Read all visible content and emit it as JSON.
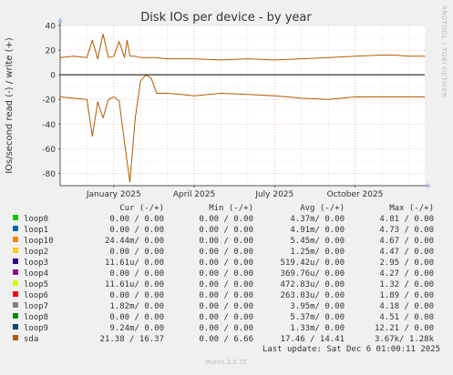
{
  "chart_data": {
    "type": "line",
    "title": "Disk IOs per device - by year",
    "ylabel": "IOs/second read (-) / write (+)",
    "watermark": "RRDTOOL / TOBI OETIKER",
    "footer": "Munin 2.0.75",
    "last_update": "Last update: Sat Dec  6 01:00:11 2025",
    "ylim": [
      -90,
      40
    ],
    "yticks": [
      40,
      20,
      0,
      -20,
      -40,
      -60,
      -80
    ],
    "xlim": [
      0,
      13.6
    ],
    "x_unit": "months since 2024-11-01",
    "xticks": [
      {
        "label": "January 2025",
        "x": 2
      },
      {
        "label": "April 2025",
        "x": 5
      },
      {
        "label": "July 2025",
        "x": 8
      },
      {
        "label": "October 2025",
        "x": 11
      }
    ],
    "legend_headers": [
      "Cur (-/+)",
      "Min (-/+)",
      "Avg (-/+)",
      "Max (-/+)"
    ],
    "legend": [
      {
        "name": "loop0",
        "color": "#00cc00",
        "cur": "0.00 /  0.00",
        "min": "0.00 /  0.00",
        "avg": "4.37m/  0.00",
        "max": "4.81 /  0.00"
      },
      {
        "name": "loop1",
        "color": "#0066b3",
        "cur": "0.00 /  0.00",
        "min": "0.00 /  0.00",
        "avg": "4.91m/  0.00",
        "max": "4.73 /  0.00"
      },
      {
        "name": "loop10",
        "color": "#ff8000",
        "cur": "24.44m/  0.00",
        "min": "0.00 /  0.00",
        "avg": "5.45m/  0.00",
        "max": "4.67 /  0.00"
      },
      {
        "name": "loop2",
        "color": "#ffcc00",
        "cur": "0.00 /  0.00",
        "min": "0.00 /  0.00",
        "avg": "1.25m/  0.00",
        "max": "4.47 /  0.00"
      },
      {
        "name": "loop3",
        "color": "#330099",
        "cur": "11.61u/  0.00",
        "min": "0.00 /  0.00",
        "avg": "519.42u/  0.00",
        "max": "2.95 /  0.00"
      },
      {
        "name": "loop4",
        "color": "#990099",
        "cur": "0.00 /  0.00",
        "min": "0.00 /  0.00",
        "avg": "369.76u/  0.00",
        "max": "4.27 /  0.00"
      },
      {
        "name": "loop5",
        "color": "#ccff00",
        "cur": "11.61u/  0.00",
        "min": "0.00 /  0.00",
        "avg": "472.83u/  0.00",
        "max": "1.32 /  0.00"
      },
      {
        "name": "loop6",
        "color": "#ff0000",
        "cur": "0.00 /  0.00",
        "min": "0.00 /  0.00",
        "avg": "263.03u/  0.00",
        "max": "1.89 /  0.00"
      },
      {
        "name": "loop7",
        "color": "#808080",
        "cur": "1.82m/  0.00",
        "min": "0.00 /  0.00",
        "avg": "3.95m/  0.00",
        "max": "4.18 /  0.00"
      },
      {
        "name": "loop8",
        "color": "#008f00",
        "cur": "0.00 /  0.00",
        "min": "0.00 /  0.00",
        "avg": "5.37m/  0.00",
        "max": "4.51 /  0.00"
      },
      {
        "name": "loop9",
        "color": "#00487d",
        "cur": "9.24m/  0.00",
        "min": "0.00 /  0.00",
        "avg": "1.33m/  0.00",
        "max": "12.21 /  0.00"
      },
      {
        "name": "sda",
        "color": "#b35a00",
        "cur": "21.38 / 16.37",
        "min": "0.00 /  6.66",
        "avg": "17.46 / 14.41",
        "max": "3.67k/  1.28k"
      }
    ],
    "series": [
      {
        "name": "sda",
        "color": "#b35a00",
        "write": {
          "x": [
            0,
            0.5,
            1.0,
            1.2,
            1.4,
            1.6,
            1.8,
            2.0,
            2.2,
            2.4,
            2.5,
            2.6,
            2.8,
            3.0,
            3.5,
            4.0,
            5.0,
            6.0,
            7.0,
            8.0,
            9.0,
            10.0,
            11.0,
            12.0,
            12.5,
            13.0,
            13.6
          ],
          "y": [
            14,
            15,
            14,
            28,
            13,
            33,
            14,
            15,
            27,
            14,
            28,
            15,
            15,
            14,
            14,
            13,
            13,
            12,
            13,
            12,
            13,
            14,
            15,
            16,
            16,
            15,
            15
          ]
        },
        "read": {
          "x": [
            0,
            0.5,
            1.0,
            1.2,
            1.4,
            1.6,
            1.8,
            2.0,
            2.2,
            2.4,
            2.6,
            2.8,
            3.0,
            3.2,
            3.4,
            3.6,
            4.0,
            4.5,
            5.0,
            6.0,
            7.0,
            8.0,
            9.0,
            10.0,
            11.0,
            12.0,
            13.0,
            13.6
          ],
          "y": [
            -18,
            -19,
            -20,
            -50,
            -22,
            -35,
            -20,
            -18,
            -21,
            -55,
            -87,
            -35,
            -5,
            0,
            -3,
            -15,
            -15,
            -16,
            -17,
            -15,
            -16,
            -17,
            -19,
            -20,
            -18,
            -18,
            -18,
            -18
          ]
        }
      }
    ]
  }
}
